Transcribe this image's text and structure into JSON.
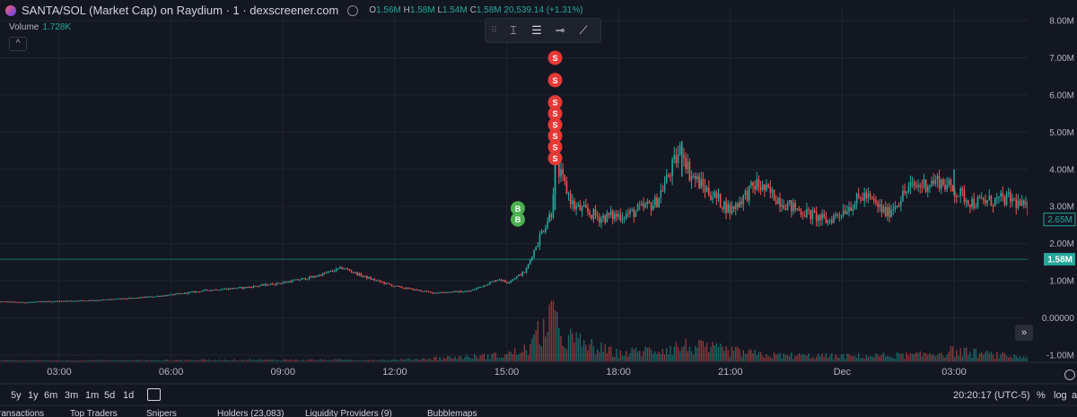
{
  "header": {
    "title": "SANTA/SOL (Market Cap) on Raydium · 1 · dexscreener.com",
    "ohlc": {
      "o_label": "O",
      "o": "1.56M",
      "h_label": "H",
      "h": "1.58M",
      "l_label": "L",
      "l": "1.54M",
      "c_label": "C",
      "c": "1.58M",
      "change": "20,539.14 (+1.31%)"
    }
  },
  "volume": {
    "label": "Volume",
    "value": "1.728K"
  },
  "colors": {
    "up": "#26a69a",
    "down": "#ef5350",
    "buy_marker": "#4caf50",
    "sell_marker": "#e53935",
    "background": "#131722",
    "grid": "#1f2430"
  },
  "toolbar": {
    "icons": [
      "drag-grip-icon",
      "text-cursor-icon",
      "horizontal-lines-icon",
      "horizontal-line-icon",
      "trend-line-icon"
    ]
  },
  "bottombar": {
    "timeframes": [
      "5y",
      "1y",
      "6m",
      "3m",
      "1m",
      "5d",
      "1d"
    ],
    "time": "20:20:17 (UTC-5)",
    "percent": "%",
    "log": "log",
    "auto": "a"
  },
  "tabs": [
    "ransactions",
    "Top Traders",
    "Snipers",
    "Holders (23,083)",
    "Liquidity Providers (9)",
    "Bubblemaps"
  ],
  "chart_data": {
    "type": "candlestick",
    "title": "SANTA/SOL (Market Cap) on Raydium · 1 · dexscreener.com",
    "y_axis": {
      "labels": [
        "8.00M",
        "7.00M",
        "6.00M",
        "5.00M",
        "4.00M",
        "3.00M",
        "2.00M",
        "1.00M",
        "0.00000",
        "-1.00M"
      ],
      "ylim": [
        -1000000,
        8000000
      ]
    },
    "x_axis": {
      "labels": [
        "03:00",
        "06:00",
        "09:00",
        "12:00",
        "15:00",
        "18:00",
        "21:00",
        "Dec",
        "03:00"
      ]
    },
    "price_series_keypoints": {
      "x_hours": [
        1.0,
        2.0,
        3.0,
        4.0,
        5.0,
        6.0,
        7.0,
        8.0,
        9.0,
        9.8,
        10.6,
        11.2,
        12.0,
        13.0,
        14.0,
        14.8,
        15.0,
        15.5,
        16.0,
        16.2,
        16.3,
        16.8,
        17.5,
        18.3,
        19.0,
        19.7,
        19.9,
        20.3,
        21.0,
        21.7,
        22.6,
        23.6,
        24.6,
        25.2,
        25.8,
        26.6,
        27.5,
        28.5,
        29.0,
        29.6
      ],
      "values": [
        450000,
        420000,
        450000,
        480000,
        530000,
        620000,
        750000,
        820000,
        950000,
        1100000,
        1350000,
        1100000,
        850000,
        680000,
        720000,
        1050000,
        950000,
        1250000,
        2450000,
        2850000,
        4150000,
        3000000,
        2700000,
        2800000,
        3100000,
        4600000,
        3900000,
        3500000,
        2900000,
        3600000,
        3000000,
        2600000,
        3300000,
        2800000,
        3500000,
        3700000,
        3100000,
        3200000,
        2900000,
        2650000
      ]
    },
    "volume_series_keypoints": {
      "x_hours": [
        1,
        4,
        8,
        12,
        14.9,
        15.6,
        16.2,
        16.4,
        17,
        18,
        19.8,
        22,
        24,
        26,
        27,
        28.5,
        29.5
      ],
      "values": [
        0.02,
        0.02,
        0.03,
        0.03,
        0.12,
        0.25,
        0.9,
        0.55,
        0.35,
        0.15,
        0.3,
        0.12,
        0.1,
        0.12,
        0.2,
        0.1,
        0.08
      ]
    },
    "trade_markers": [
      {
        "label": "S",
        "side": "sell",
        "x_hour": 16.3,
        "value": 7000000
      },
      {
        "label": "S",
        "side": "sell",
        "x_hour": 16.3,
        "value": 6400000
      },
      {
        "label": "S",
        "side": "sell",
        "x_hour": 16.3,
        "value": 5800000
      },
      {
        "label": "S",
        "side": "sell",
        "x_hour": 16.3,
        "value": 5500000
      },
      {
        "label": "S",
        "side": "sell",
        "x_hour": 16.3,
        "value": 5200000
      },
      {
        "label": "S",
        "side": "sell",
        "x_hour": 16.3,
        "value": 4900000
      },
      {
        "label": "S",
        "side": "sell",
        "x_hour": 16.3,
        "value": 4600000
      },
      {
        "label": "S",
        "side": "sell",
        "x_hour": 16.3,
        "value": 4300000
      },
      {
        "label": "B",
        "side": "buy",
        "x_hour": 15.3,
        "value": 2950000
      },
      {
        "label": "B",
        "side": "buy",
        "x_hour": 15.3,
        "value": 2650000
      }
    ],
    "price_labels": [
      {
        "text": "2.65M",
        "value": 2650000,
        "style": "outline"
      },
      {
        "text": "1.58M",
        "value": 1580000,
        "style": "filled"
      }
    ],
    "grid": true
  }
}
